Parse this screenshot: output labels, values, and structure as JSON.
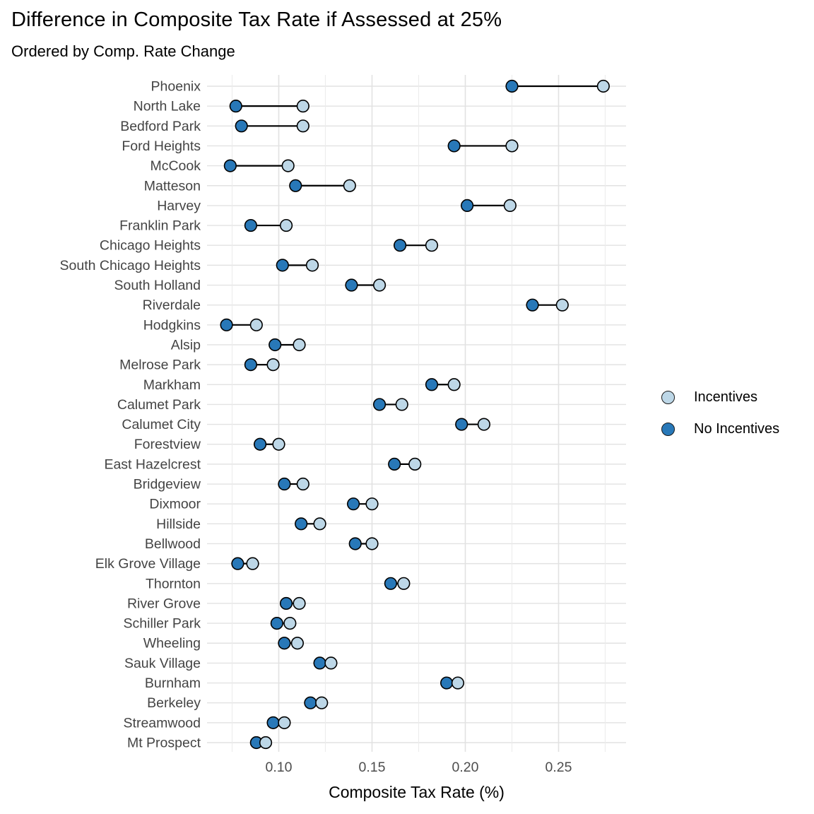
{
  "title": "Difference in Composite Tax Rate if Assessed at 25%",
  "subtitle": "Ordered by Comp. Rate Change",
  "legend": {
    "items": [
      {
        "label": "Incentives",
        "color": "#BDD7E7"
      },
      {
        "label": "No Incentives",
        "color": "#2878B8"
      }
    ]
  },
  "chart_data": {
    "type": "scatter",
    "subtype": "dumbbell",
    "orientation": "horizontal",
    "title": "Difference in Composite Tax Rate if Assessed at 25%",
    "subtitle": "Ordered by Comp. Rate Change",
    "xlabel": "Composite Tax Rate (%)",
    "ylabel": "",
    "xlim": [
      0.062,
      0.286
    ],
    "x_major_ticks": [
      0.1,
      0.15,
      0.2,
      0.25
    ],
    "x_tick_labels": [
      "0.10",
      "0.15",
      "0.20",
      "0.25"
    ],
    "x_minor_ticks": [
      0.075,
      0.125,
      0.175,
      0.225,
      0.275
    ],
    "grid": "vertical major+minor gridlines, one horizontal gridline per category",
    "legend_position": "right-center",
    "connector_color": "#000000",
    "point_outline": "#000000",
    "categories": [
      "Phoenix",
      "North Lake",
      "Bedford Park",
      "Ford Heights",
      "McCook",
      "Matteson",
      "Harvey",
      "Franklin Park",
      "Chicago Heights",
      "South Chicago Heights",
      "South Holland",
      "Riverdale",
      "Hodgkins",
      "Alsip",
      "Melrose Park",
      "Markham",
      "Calumet Park",
      "Calumet City",
      "Forestview",
      "East Hazelcrest",
      "Bridgeview",
      "Dixmoor",
      "Hillside",
      "Bellwood",
      "Elk Grove Village",
      "Thornton",
      "River Grove",
      "Schiller Park",
      "Wheeling",
      "Sauk Village",
      "Burnham",
      "Berkeley",
      "Streamwood",
      "Mt Prospect"
    ],
    "series": [
      {
        "name": "Incentives",
        "color": "#BDD7E7",
        "values": [
          0.274,
          0.113,
          0.113,
          0.225,
          0.105,
          0.138,
          0.224,
          0.104,
          0.182,
          0.118,
          0.154,
          0.252,
          0.088,
          0.111,
          0.097,
          0.194,
          0.166,
          0.21,
          0.1,
          0.173,
          0.113,
          0.15,
          0.122,
          0.15,
          0.086,
          0.167,
          0.111,
          0.106,
          0.11,
          0.128,
          0.196,
          0.123,
          0.103,
          0.093
        ]
      },
      {
        "name": "No Incentives",
        "color": "#2878B8",
        "values": [
          0.225,
          0.077,
          0.08,
          0.194,
          0.074,
          0.109,
          0.201,
          0.085,
          0.165,
          0.102,
          0.139,
          0.236,
          0.072,
          0.098,
          0.085,
          0.182,
          0.154,
          0.198,
          0.09,
          0.162,
          0.103,
          0.14,
          0.112,
          0.141,
          0.078,
          0.16,
          0.104,
          0.099,
          0.103,
          0.122,
          0.19,
          0.117,
          0.097,
          0.088
        ]
      }
    ]
  },
  "colors": {
    "background": "#FFFFFF",
    "gridline_major": "#E2E2E2",
    "gridline_minor": "#ECECEC",
    "axis_text": "#4D4D4D",
    "category_text": "#444444",
    "title_text": "#000000"
  }
}
